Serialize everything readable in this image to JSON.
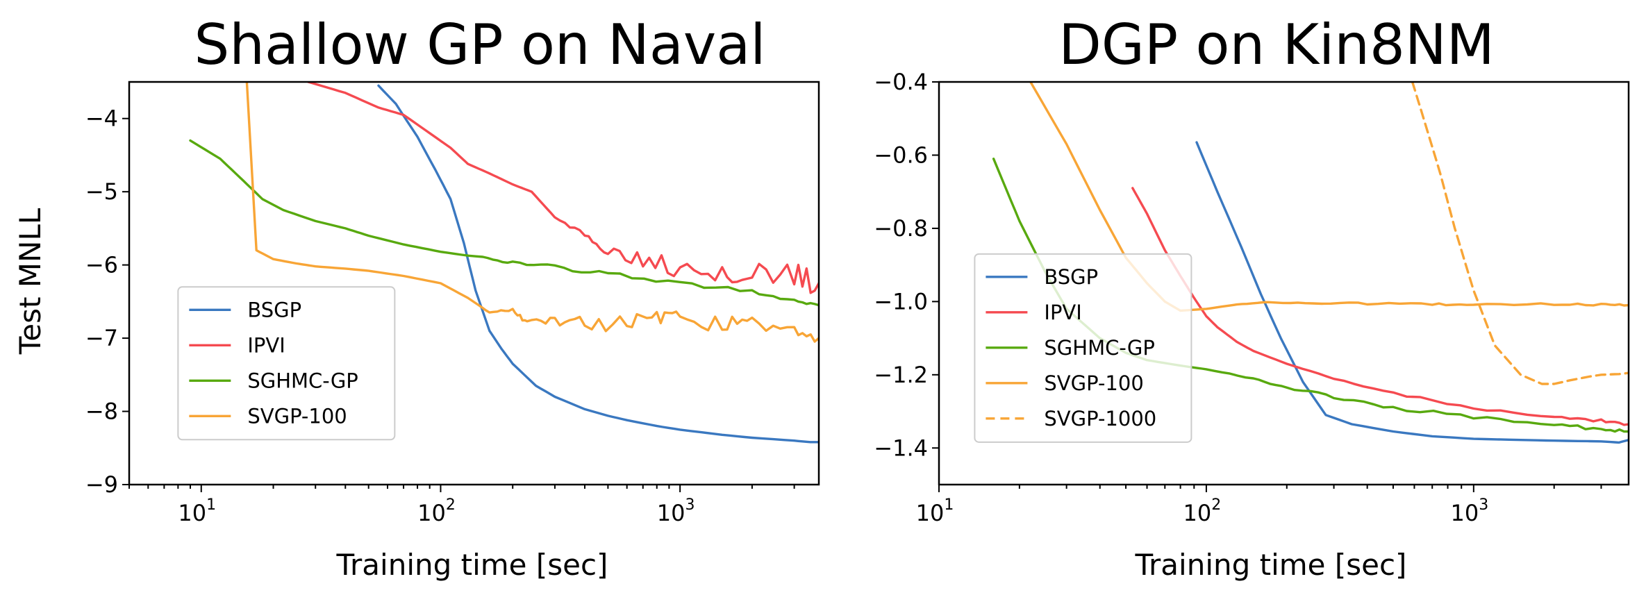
{
  "colors": {
    "BSGP": "#3a78c0",
    "IPVI": "#f54a50",
    "SGHMC-GP": "#58a90f",
    "SVGP-100": "#f8a536",
    "SVGP-1000": "#f8a536"
  },
  "chart_data": [
    {
      "type": "line",
      "title": "Shallow GP on Naval",
      "xlabel": "Training time [sec]",
      "ylabel": "Test MNLL",
      "xscale": "log",
      "xlim": [
        5,
        3800
      ],
      "ylim": [
        -9,
        -3.5
      ],
      "xticks": [
        {
          "value": 10,
          "base": "10",
          "exp": "1"
        },
        {
          "value": 100,
          "base": "10",
          "exp": "2"
        },
        {
          "value": 1000,
          "base": "10",
          "exp": "3"
        }
      ],
      "yticks": [
        {
          "value": -4,
          "label": "−4"
        },
        {
          "value": -5,
          "label": "−5"
        },
        {
          "value": -6,
          "label": "−6"
        },
        {
          "value": -7,
          "label": "−7"
        },
        {
          "value": -8,
          "label": "−8"
        },
        {
          "value": -9,
          "label": "−9"
        }
      ],
      "grid": false,
      "legend": {
        "position": "center-left",
        "anchor": [
          8,
          -6.3
        ],
        "entries": [
          "BSGP",
          "IPVI",
          "SGHMC-GP",
          "SVGP-100"
        ]
      },
      "series": [
        {
          "name": "BSGP",
          "style": "solid",
          "noise": 0,
          "x": [
            55,
            65,
            80,
            95,
            110,
            125,
            140,
            160,
            180,
            200,
            250,
            300,
            400,
            500,
            600,
            800,
            1000,
            1500,
            2000,
            3000,
            3500,
            3800
          ],
          "y": [
            -3.55,
            -3.8,
            -4.25,
            -4.7,
            -5.1,
            -5.7,
            -6.35,
            -6.9,
            -7.15,
            -7.35,
            -7.65,
            -7.8,
            -7.97,
            -8.06,
            -8.12,
            -8.2,
            -8.25,
            -8.32,
            -8.36,
            -8.4,
            -8.42,
            -8.42
          ]
        },
        {
          "name": "IPVI",
          "style": "solid",
          "noise": 0.17,
          "noiseStart": 300,
          "x": [
            28,
            40,
            55,
            70,
            90,
            110,
            130,
            160,
            200,
            240,
            300,
            400,
            500,
            700,
            1000,
            1500,
            2000,
            3000,
            3800
          ],
          "y": [
            -3.5,
            -3.65,
            -3.85,
            -3.95,
            -4.2,
            -4.4,
            -4.62,
            -4.75,
            -4.9,
            -5.0,
            -5.35,
            -5.6,
            -5.8,
            -5.9,
            -6.0,
            -6.05,
            -6.1,
            -6.15,
            -6.25
          ]
        },
        {
          "name": "SGHMC-GP",
          "style": "solid",
          "noise": 0.03,
          "noiseStart": 100,
          "x": [
            9,
            12,
            15,
            18,
            22,
            30,
            40,
            50,
            70,
            100,
            150,
            200,
            300,
            500,
            1000,
            2000,
            3000,
            3800
          ],
          "y": [
            -4.3,
            -4.55,
            -4.85,
            -5.1,
            -5.25,
            -5.4,
            -5.5,
            -5.6,
            -5.72,
            -5.82,
            -5.9,
            -5.97,
            -6.03,
            -6.12,
            -6.25,
            -6.37,
            -6.48,
            -6.55
          ]
        },
        {
          "name": "SVGP-100",
          "style": "solid",
          "noise": 0.11,
          "noiseStart": 150,
          "x": [
            15.5,
            17,
            20,
            25,
            30,
            40,
            50,
            70,
            100,
            130,
            160,
            200,
            230,
            300,
            400,
            600,
            800,
            1000,
            1500,
            2000,
            3000,
            3800
          ],
          "y": [
            -3.5,
            -5.8,
            -5.92,
            -5.98,
            -6.02,
            -6.05,
            -6.08,
            -6.15,
            -6.25,
            -6.45,
            -6.65,
            -6.62,
            -6.8,
            -6.75,
            -6.78,
            -6.82,
            -6.7,
            -6.75,
            -6.8,
            -6.82,
            -6.85,
            -7.0
          ]
        }
      ]
    },
    {
      "type": "line",
      "title": "DGP on Kin8NM",
      "xlabel": "Training time [sec]",
      "ylabel": "",
      "xscale": "log",
      "xlim": [
        10,
        3800
      ],
      "ylim": [
        -1.5,
        -0.4
      ],
      "xticks": [
        {
          "value": 10,
          "base": "10",
          "exp": "1"
        },
        {
          "value": 100,
          "base": "10",
          "exp": "2"
        },
        {
          "value": 1000,
          "base": "10",
          "exp": "3"
        }
      ],
      "yticks": [
        {
          "value": -0.4,
          "label": "−0.4"
        },
        {
          "value": -0.6,
          "label": "−0.6"
        },
        {
          "value": -0.8,
          "label": "−0.8"
        },
        {
          "value": -1.0,
          "label": "−1.0"
        },
        {
          "value": -1.2,
          "label": "−1.2"
        },
        {
          "value": -1.4,
          "label": "−1.4"
        }
      ],
      "grid": false,
      "legend": {
        "position": "center-left",
        "anchor": [
          13.6,
          -0.87
        ],
        "entries": [
          "BSGP",
          "IPVI",
          "SGHMC-GP",
          "SVGP-100",
          "SVGP-1000"
        ]
      },
      "series": [
        {
          "name": "BSGP",
          "style": "solid",
          "noise": 0,
          "x": [
            92,
            110,
            135,
            160,
            190,
            230,
            280,
            350,
            500,
            700,
            1000,
            1500,
            2000,
            3000,
            3500,
            3800
          ],
          "y": [
            -0.565,
            -0.7,
            -0.85,
            -0.98,
            -1.1,
            -1.22,
            -1.31,
            -1.335,
            -1.355,
            -1.368,
            -1.375,
            -1.378,
            -1.38,
            -1.382,
            -1.385,
            -1.378
          ]
        },
        {
          "name": "IPVI",
          "style": "solid",
          "noise": 0.004,
          "noiseStart": 200,
          "x": [
            53,
            60,
            70,
            80,
            90,
            100,
            110,
            130,
            150,
            200,
            300,
            500,
            1000,
            2000,
            3000,
            3800
          ],
          "y": [
            -0.69,
            -0.76,
            -0.86,
            -0.93,
            -0.99,
            -1.04,
            -1.07,
            -1.11,
            -1.135,
            -1.17,
            -1.21,
            -1.25,
            -1.29,
            -1.315,
            -1.325,
            -1.335
          ]
        },
        {
          "name": "SGHMC-GP",
          "style": "solid",
          "noise": 0.005,
          "noiseStart": 100,
          "x": [
            16,
            20,
            25,
            30,
            40,
            50,
            60,
            80,
            100,
            150,
            200,
            300,
            500,
            1000,
            2000,
            3000,
            3800
          ],
          "y": [
            -0.61,
            -0.78,
            -0.92,
            -1.02,
            -1.1,
            -1.14,
            -1.16,
            -1.175,
            -1.185,
            -1.21,
            -1.235,
            -1.26,
            -1.29,
            -1.315,
            -1.335,
            -1.35,
            -1.355
          ]
        },
        {
          "name": "SVGP-100",
          "style": "solid",
          "noise": 0.003,
          "noiseStart": 120,
          "x": [
            22,
            30,
            40,
            50,
            60,
            70,
            80,
            100,
            130,
            170,
            250,
            400,
            700,
            1000,
            2000,
            3000,
            3800
          ],
          "y": [
            -0.4,
            -0.57,
            -0.75,
            -0.88,
            -0.95,
            -1.0,
            -1.025,
            -1.02,
            -1.008,
            -1.002,
            -1.004,
            -1.006,
            -1.008,
            -1.008,
            -1.007,
            -1.008,
            -1.01
          ]
        },
        {
          "name": "SVGP-1000",
          "style": "dashed",
          "noise": 0,
          "x": [
            590,
            650,
            750,
            850,
            1000,
            1200,
            1500,
            1800,
            2000,
            2300,
            2700,
            3000,
            3500,
            3800
          ],
          "y": [
            -0.4,
            -0.5,
            -0.65,
            -0.8,
            -0.97,
            -1.12,
            -1.2,
            -1.225,
            -1.225,
            -1.215,
            -1.205,
            -1.2,
            -1.198,
            -1.195
          ]
        }
      ]
    }
  ]
}
